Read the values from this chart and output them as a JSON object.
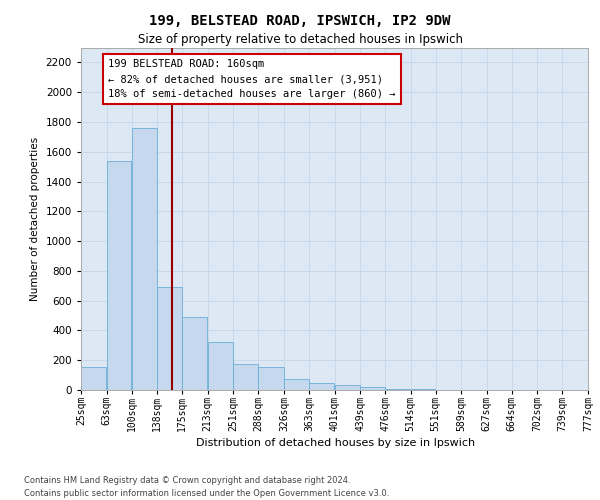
{
  "title1": "199, BELSTEAD ROAD, IPSWICH, IP2 9DW",
  "title2": "Size of property relative to detached houses in Ipswich",
  "xlabel": "Distribution of detached houses by size in Ipswich",
  "ylabel": "Number of detached properties",
  "footer1": "Contains HM Land Registry data © Crown copyright and database right 2024.",
  "footer2": "Contains public sector information licensed under the Open Government Licence v3.0.",
  "annotation_line1": "199 BELSTEAD ROAD: 160sqm",
  "annotation_line2": "← 82% of detached houses are smaller (3,951)",
  "annotation_line3": "18% of semi-detached houses are larger (860) →",
  "property_size": 160,
  "bar_color": "#c5d8ee",
  "bar_edge_color": "#6aaed6",
  "redline_color": "#990000",
  "annotation_box_edgecolor": "#cc0000",
  "grid_color": "#c8d8ea",
  "background_color": "#dce9f5",
  "bin_edges": [
    25,
    63,
    100,
    138,
    175,
    213,
    251,
    288,
    326,
    363,
    401,
    439,
    476,
    514,
    551,
    589,
    627,
    664,
    702,
    739,
    777
  ],
  "bin_labels": [
    "25sqm",
    "63sqm",
    "100sqm",
    "138sqm",
    "175sqm",
    "213sqm",
    "251sqm",
    "288sqm",
    "326sqm",
    "363sqm",
    "401sqm",
    "439sqm",
    "476sqm",
    "514sqm",
    "551sqm",
    "589sqm",
    "627sqm",
    "664sqm",
    "702sqm",
    "739sqm",
    "777sqm"
  ],
  "values": [
    155,
    1540,
    1760,
    690,
    490,
    320,
    175,
    155,
    75,
    50,
    35,
    20,
    10,
    4,
    2,
    1,
    0,
    0,
    0,
    0,
    0
  ],
  "ylim": [
    0,
    2300
  ],
  "yticks": [
    0,
    200,
    400,
    600,
    800,
    1000,
    1200,
    1400,
    1600,
    1800,
    2000,
    2200
  ]
}
